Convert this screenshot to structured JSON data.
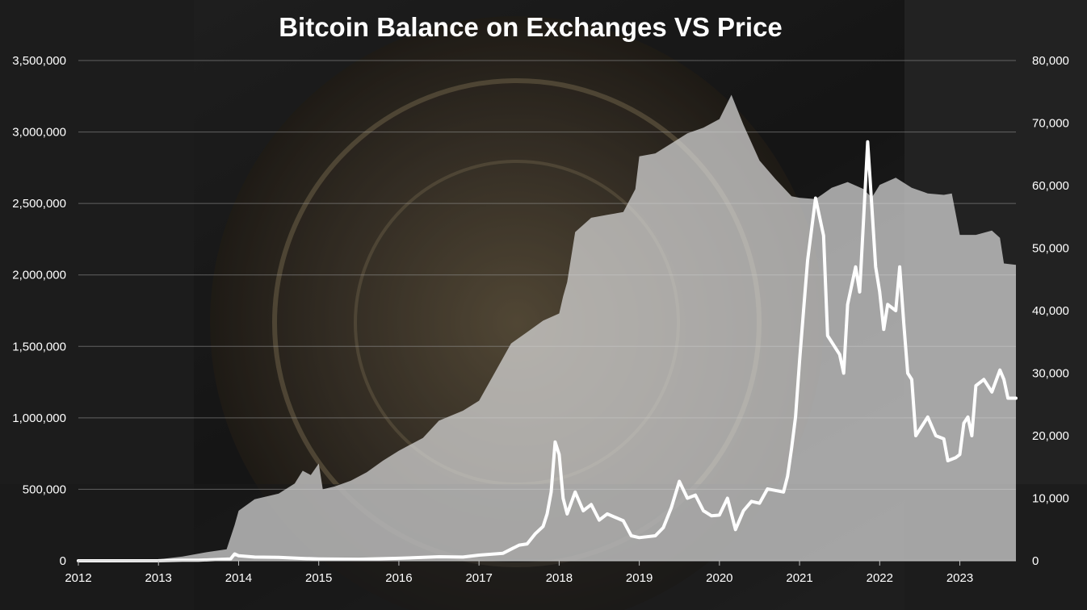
{
  "chart_data": {
    "type": "area",
    "title": "Bitcoin Balance on Exchanges VS Price",
    "xlabel": "",
    "ylabel": "",
    "y2label": "",
    "grid": true,
    "legend": "none",
    "x_ticks": [
      "2012",
      "2013",
      "2014",
      "2015",
      "2016",
      "2017",
      "2018",
      "2019",
      "2020",
      "2021",
      "2022",
      "2023"
    ],
    "xlim": [
      2012.0,
      2023.7
    ],
    "ylim": [
      0,
      3500000
    ],
    "y_ticks": [
      "0",
      "500,000",
      "1,000,000",
      "1,500,000",
      "2,000,000",
      "2,500,000",
      "3,000,000",
      "3,500,000"
    ],
    "y2lim": [
      0,
      80000
    ],
    "y2_ticks": [
      "0",
      "10,000",
      "20,000",
      "30,000",
      "40,000",
      "50,000",
      "60,000",
      "70,000",
      "80,000"
    ],
    "series": [
      {
        "axis": "left",
        "style": "area",
        "color": "#d9d9d9",
        "points": [
          [
            2012.0,
            0
          ],
          [
            2012.9,
            2000
          ],
          [
            2013.0,
            10000
          ],
          [
            2013.3,
            30000
          ],
          [
            2013.6,
            60000
          ],
          [
            2013.85,
            80000
          ],
          [
            2013.95,
            250000
          ],
          [
            2014.0,
            350000
          ],
          [
            2014.2,
            430000
          ],
          [
            2014.5,
            470000
          ],
          [
            2014.7,
            540000
          ],
          [
            2014.8,
            630000
          ],
          [
            2014.9,
            600000
          ],
          [
            2015.0,
            680000
          ],
          [
            2015.05,
            500000
          ],
          [
            2015.2,
            520000
          ],
          [
            2015.4,
            560000
          ],
          [
            2015.6,
            620000
          ],
          [
            2015.8,
            700000
          ],
          [
            2016.0,
            770000
          ],
          [
            2016.3,
            860000
          ],
          [
            2016.5,
            980000
          ],
          [
            2016.8,
            1050000
          ],
          [
            2017.0,
            1120000
          ],
          [
            2017.2,
            1320000
          ],
          [
            2017.4,
            1520000
          ],
          [
            2017.6,
            1600000
          ],
          [
            2017.8,
            1680000
          ],
          [
            2018.0,
            1730000
          ],
          [
            2018.05,
            1850000
          ],
          [
            2018.1,
            1950000
          ],
          [
            2018.2,
            2300000
          ],
          [
            2018.4,
            2400000
          ],
          [
            2018.6,
            2420000
          ],
          [
            2018.8,
            2440000
          ],
          [
            2018.95,
            2600000
          ],
          [
            2019.0,
            2830000
          ],
          [
            2019.2,
            2850000
          ],
          [
            2019.4,
            2920000
          ],
          [
            2019.6,
            2990000
          ],
          [
            2019.8,
            3030000
          ],
          [
            2020.0,
            3090000
          ],
          [
            2020.15,
            3260000
          ],
          [
            2020.3,
            3050000
          ],
          [
            2020.5,
            2800000
          ],
          [
            2020.7,
            2670000
          ],
          [
            2020.9,
            2550000
          ],
          [
            2021.0,
            2540000
          ],
          [
            2021.2,
            2530000
          ],
          [
            2021.4,
            2610000
          ],
          [
            2021.6,
            2650000
          ],
          [
            2021.8,
            2600000
          ],
          [
            2021.9,
            2540000
          ],
          [
            2022.0,
            2630000
          ],
          [
            2022.2,
            2680000
          ],
          [
            2022.4,
            2610000
          ],
          [
            2022.6,
            2570000
          ],
          [
            2022.8,
            2560000
          ],
          [
            2022.9,
            2570000
          ],
          [
            2023.0,
            2280000
          ],
          [
            2023.2,
            2280000
          ],
          [
            2023.4,
            2310000
          ],
          [
            2023.5,
            2260000
          ],
          [
            2023.55,
            2080000
          ],
          [
            2023.7,
            2070000
          ]
        ]
      },
      {
        "axis": "right",
        "style": "line",
        "color": "#ffffff",
        "points": [
          [
            2012.0,
            5
          ],
          [
            2013.0,
            15
          ],
          [
            2013.3,
            100
          ],
          [
            2013.5,
            90
          ],
          [
            2013.9,
            300
          ],
          [
            2013.95,
            1100
          ],
          [
            2014.0,
            800
          ],
          [
            2014.2,
            600
          ],
          [
            2014.5,
            550
          ],
          [
            2014.8,
            380
          ],
          [
            2015.0,
            300
          ],
          [
            2015.5,
            250
          ],
          [
            2016.0,
            400
          ],
          [
            2016.5,
            650
          ],
          [
            2016.8,
            600
          ],
          [
            2017.0,
            900
          ],
          [
            2017.3,
            1200
          ],
          [
            2017.5,
            2500
          ],
          [
            2017.6,
            2700
          ],
          [
            2017.7,
            4300
          ],
          [
            2017.8,
            5500
          ],
          [
            2017.85,
            7500
          ],
          [
            2017.9,
            11000
          ],
          [
            2017.95,
            19000
          ],
          [
            2018.0,
            17000
          ],
          [
            2018.05,
            10000
          ],
          [
            2018.1,
            7500
          ],
          [
            2018.2,
            11000
          ],
          [
            2018.3,
            8000
          ],
          [
            2018.4,
            9000
          ],
          [
            2018.5,
            6500
          ],
          [
            2018.6,
            7500
          ],
          [
            2018.8,
            6400
          ],
          [
            2018.9,
            4000
          ],
          [
            2019.0,
            3700
          ],
          [
            2019.2,
            4000
          ],
          [
            2019.3,
            5300
          ],
          [
            2019.4,
            8500
          ],
          [
            2019.5,
            12700
          ],
          [
            2019.6,
            10000
          ],
          [
            2019.7,
            10500
          ],
          [
            2019.8,
            8000
          ],
          [
            2019.9,
            7200
          ],
          [
            2020.0,
            7300
          ],
          [
            2020.1,
            10000
          ],
          [
            2020.2,
            5000
          ],
          [
            2020.3,
            8000
          ],
          [
            2020.4,
            9500
          ],
          [
            2020.5,
            9200
          ],
          [
            2020.6,
            11500
          ],
          [
            2020.8,
            11000
          ],
          [
            2020.85,
            13500
          ],
          [
            2020.9,
            18000
          ],
          [
            2020.95,
            23000
          ],
          [
            2021.0,
            32000
          ],
          [
            2021.05,
            40000
          ],
          [
            2021.1,
            48000
          ],
          [
            2021.2,
            58000
          ],
          [
            2021.3,
            52000
          ],
          [
            2021.35,
            36000
          ],
          [
            2021.5,
            33000
          ],
          [
            2021.55,
            30000
          ],
          [
            2021.6,
            41000
          ],
          [
            2021.7,
            47000
          ],
          [
            2021.75,
            43000
          ],
          [
            2021.8,
            55000
          ],
          [
            2021.85,
            67000
          ],
          [
            2021.9,
            57000
          ],
          [
            2021.95,
            47000
          ],
          [
            2022.0,
            43000
          ],
          [
            2022.05,
            37000
          ],
          [
            2022.1,
            41000
          ],
          [
            2022.2,
            40000
          ],
          [
            2022.25,
            47000
          ],
          [
            2022.3,
            38000
          ],
          [
            2022.35,
            30000
          ],
          [
            2022.4,
            29000
          ],
          [
            2022.45,
            20000
          ],
          [
            2022.5,
            21000
          ],
          [
            2022.6,
            23000
          ],
          [
            2022.7,
            20000
          ],
          [
            2022.8,
            19500
          ],
          [
            2022.85,
            16000
          ],
          [
            2022.95,
            16500
          ],
          [
            2023.0,
            17000
          ],
          [
            2023.05,
            22000
          ],
          [
            2023.1,
            23000
          ],
          [
            2023.15,
            20000
          ],
          [
            2023.2,
            28000
          ],
          [
            2023.3,
            29000
          ],
          [
            2023.4,
            27000
          ],
          [
            2023.5,
            30500
          ],
          [
            2023.55,
            29000
          ],
          [
            2023.6,
            26000
          ],
          [
            2023.7,
            26000
          ]
        ]
      }
    ]
  }
}
